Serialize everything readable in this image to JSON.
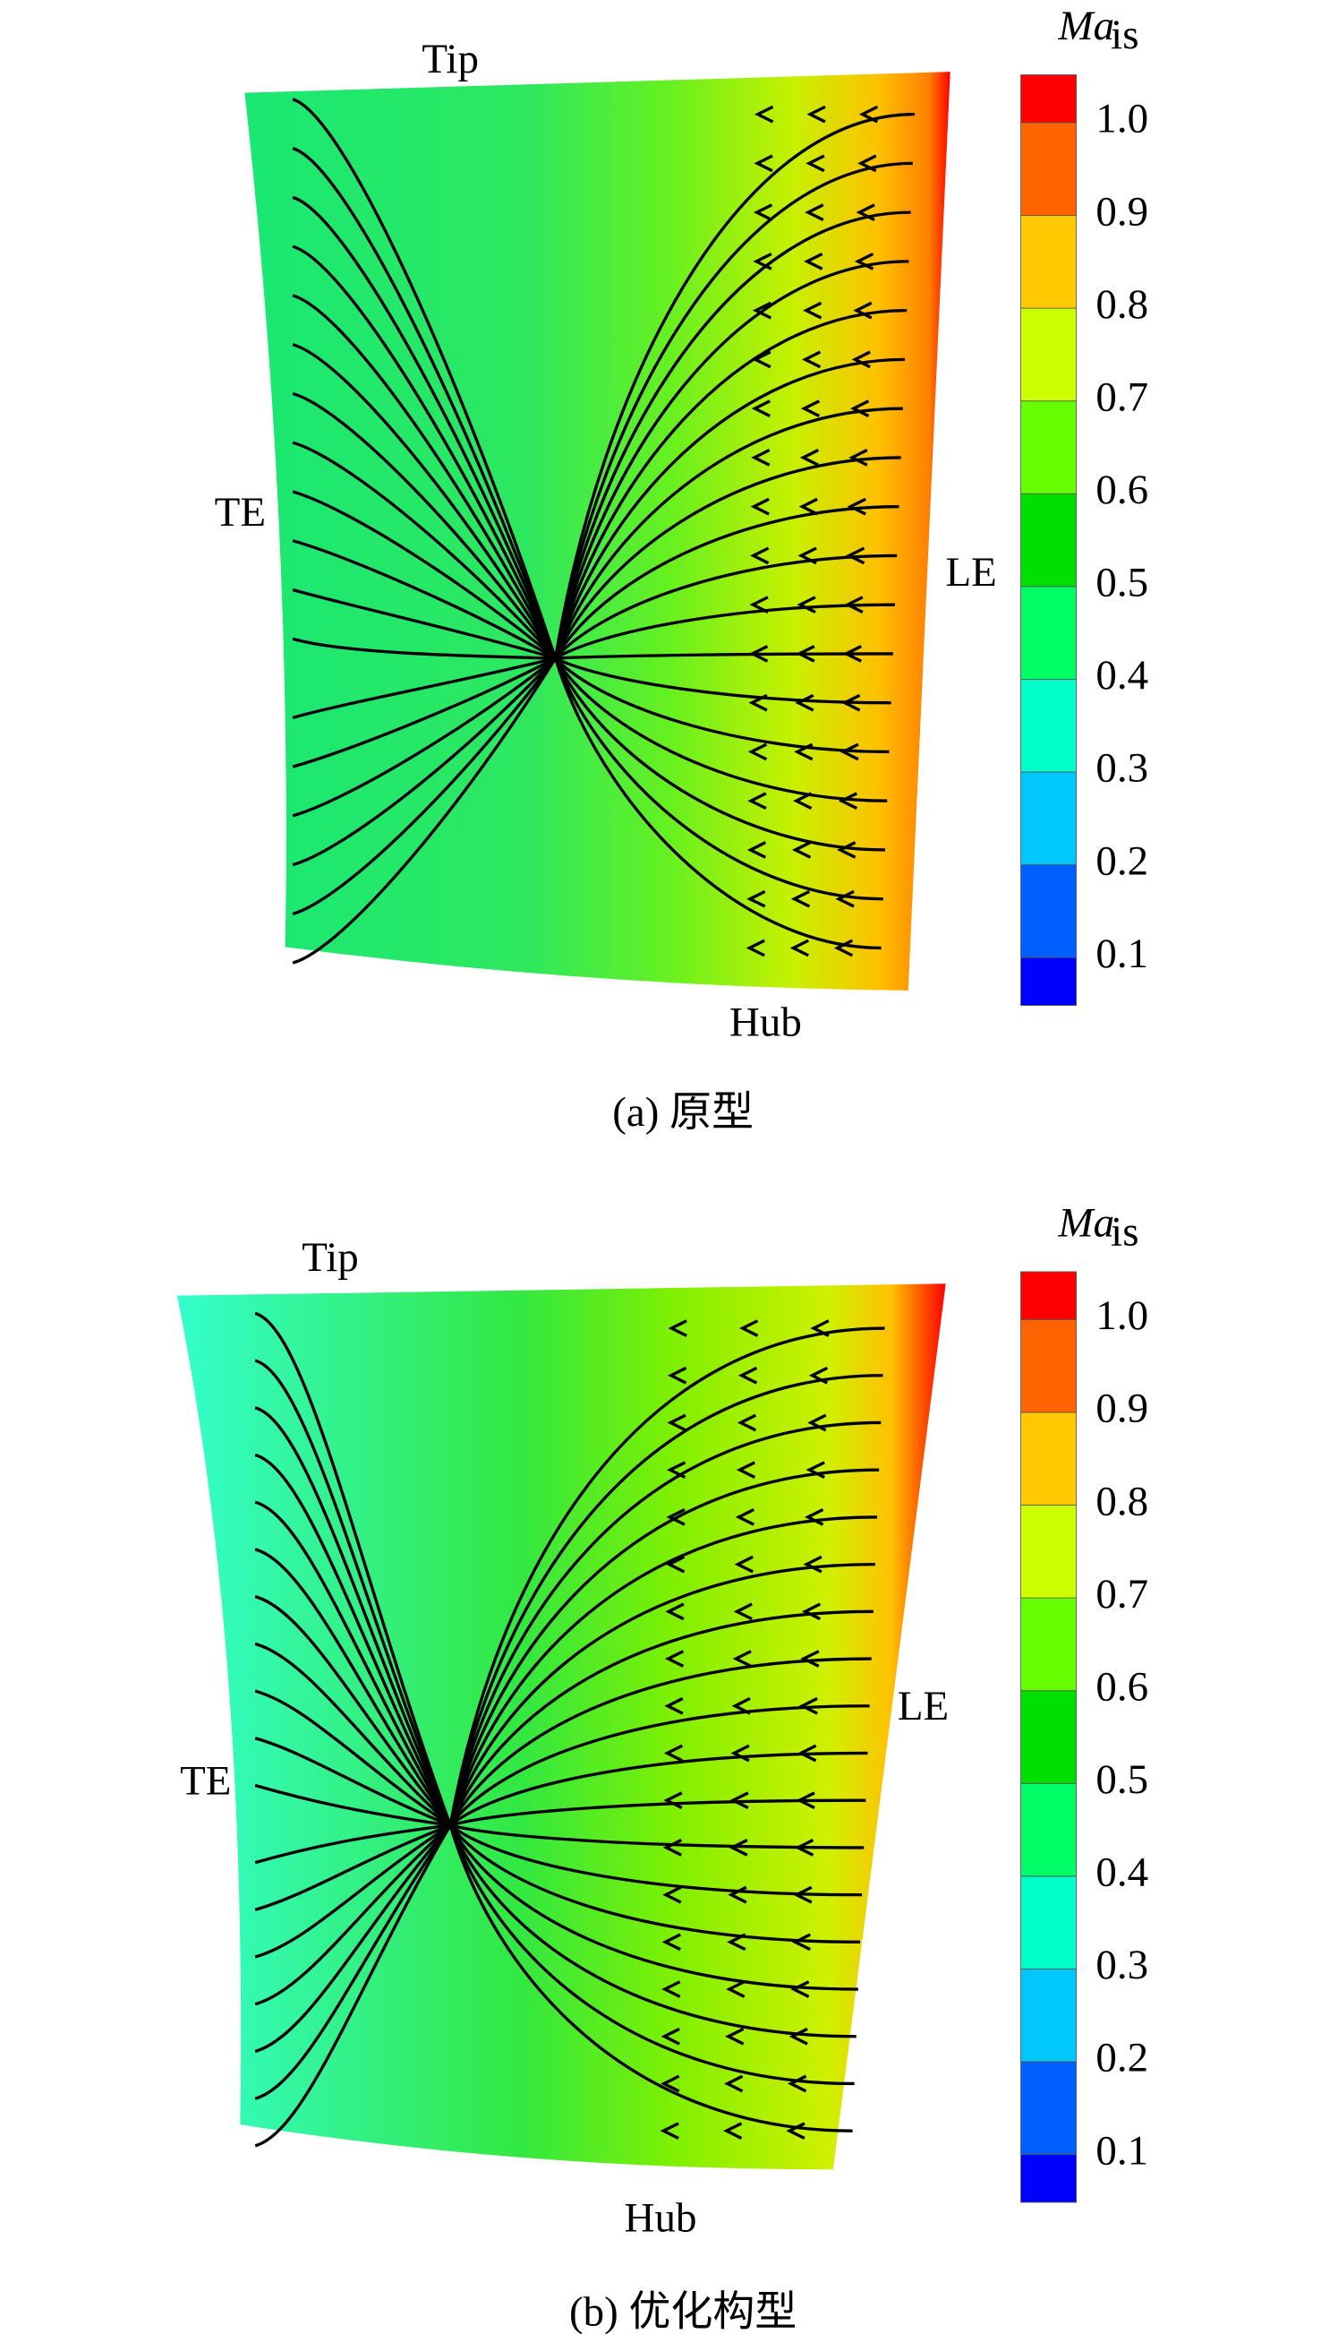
{
  "colorbar": {
    "title_main": "Ma",
    "title_sub": "is",
    "ticks": [
      "0.1",
      "0.2",
      "0.3",
      "0.4",
      "0.5",
      "0.6",
      "0.7",
      "0.8",
      "0.9",
      "1.0"
    ],
    "colors": [
      "#0000ff",
      "#0060ff",
      "#00c8ff",
      "#00ffc8",
      "#00ff66",
      "#00e000",
      "#66ff00",
      "#ccff00",
      "#ffc800",
      "#ff6400",
      "#ff0000"
    ]
  },
  "panels": [
    {
      "caption": "(a) 原型",
      "labels": {
        "tip": "Tip",
        "te": "TE",
        "le": "LE",
        "hub": "Hub"
      }
    },
    {
      "caption": "(b) 优化构型",
      "labels": {
        "tip": "Tip",
        "te": "TE",
        "le": "LE",
        "hub": "Hub"
      }
    }
  ]
}
